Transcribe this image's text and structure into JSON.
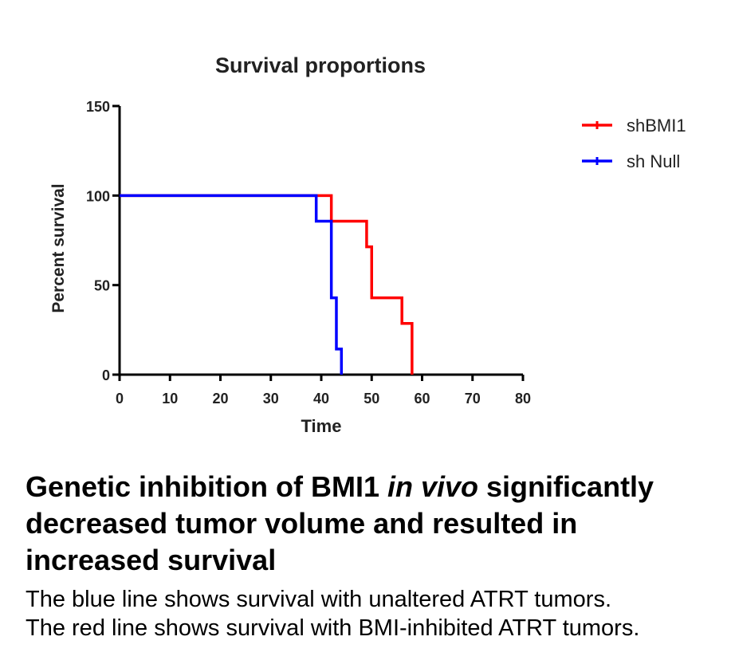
{
  "chart_data": {
    "type": "line",
    "title": "Survival proportions",
    "xlabel": "Time",
    "ylabel": "Percent survival",
    "xlim": [
      0,
      80
    ],
    "ylim": [
      0,
      150
    ],
    "x_ticks": [
      "0",
      "10",
      "20",
      "30",
      "40",
      "50",
      "60",
      "70",
      "80"
    ],
    "y_ticks": [
      "0",
      "50",
      "100",
      "150"
    ],
    "legend_position": "top-right",
    "series": [
      {
        "name": "shBMI1",
        "color": "#ff0000",
        "step": true,
        "x": [
          0,
          42,
          49,
          50,
          56,
          58
        ],
        "y": [
          100,
          85.7,
          71.4,
          42.9,
          28.6,
          0
        ]
      },
      {
        "name": "sh Null",
        "color": "#0000ff",
        "step": true,
        "x": [
          0,
          39,
          42,
          43,
          44
        ],
        "y": [
          100,
          85.7,
          42.9,
          14.3,
          0
        ]
      }
    ]
  },
  "caption": {
    "headline_before": "Genetic inhibition of BMI1 ",
    "headline_italic": "in vivo",
    "headline_after": " significantly decreased tumor volume and resulted in increased survival",
    "line1": "The blue line shows survival with unaltered ATRT tumors.",
    "line2": "The red line shows survival with BMI-inhibited ATRT tumors."
  }
}
